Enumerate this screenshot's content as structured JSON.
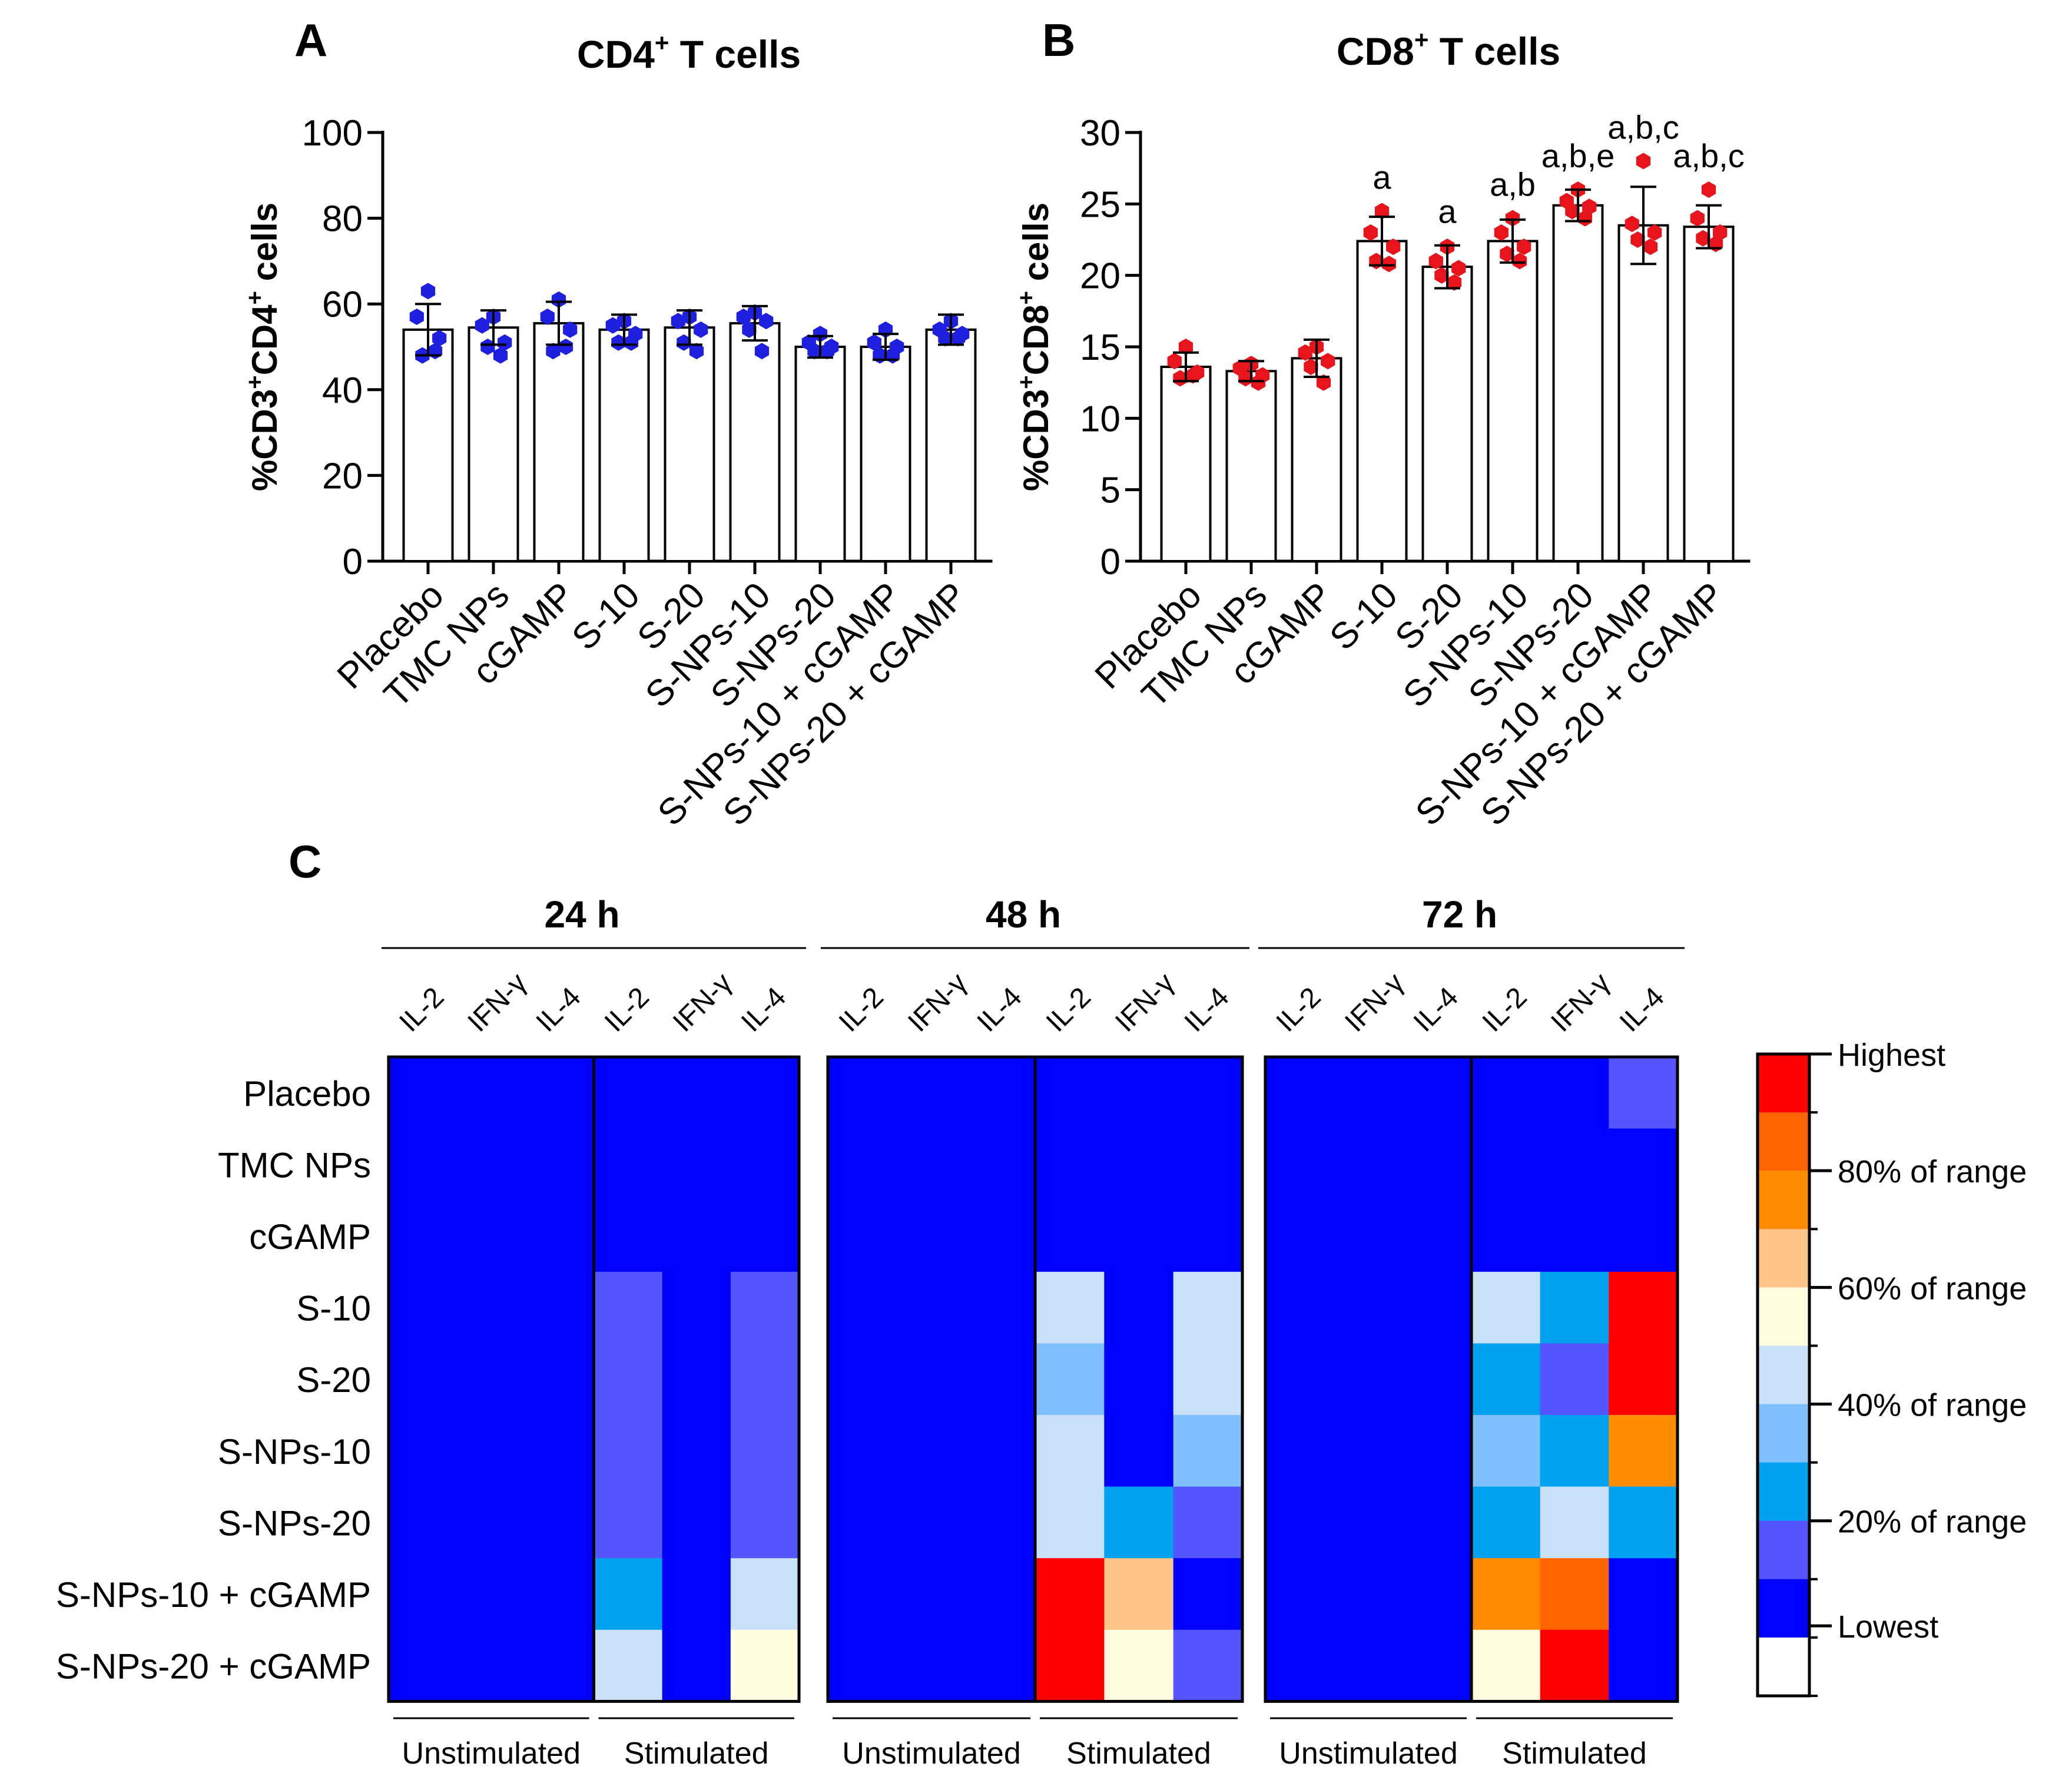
{
  "panel_a": {
    "letter": "A",
    "title_main": "CD4",
    "title_sup": "+",
    "title_rest": " T cells"
  },
  "panel_b": {
    "letter": "B",
    "title_main": "CD8",
    "title_sup": "+",
    "title_rest": " T cells"
  },
  "panel_c": {
    "letter": "C"
  },
  "colors": {
    "blue_point": "#1f1fe0",
    "red_point": "#e8141c",
    "heat_scale": [
      "#ffffff",
      "#0000ff",
      "#5555ff",
      "#00a2f0",
      "#7fbffc",
      "#c8e0f8",
      "#fffde0",
      "#ffc488",
      "#ff8c00",
      "#ff6400",
      "#ff0000"
    ]
  },
  "chart_data": [
    {
      "type": "bar",
      "id": "A",
      "title": "CD4+ T cells",
      "ylabel": "%CD3+CD4+ cells",
      "ylim": [
        0,
        100
      ],
      "yticks": [
        0,
        20,
        40,
        60,
        80,
        100
      ],
      "categories": [
        "Placebo",
        "TMC NPs",
        "cGAMP",
        "S-10",
        "S-20",
        "S-NPs-10",
        "S-NPs-20",
        "S-NPs-10 + cGAMP",
        "S-NPs-20 + cGAMP"
      ],
      "means": [
        54,
        54.5,
        55.5,
        54,
        54.5,
        55.5,
        50,
        50,
        54
      ],
      "sd": [
        6,
        4,
        5,
        3.5,
        4,
        4,
        2.5,
        3,
        3.5
      ],
      "points": [
        [
          63,
          57,
          52,
          48,
          49
        ],
        [
          57,
          55,
          51,
          50,
          48
        ],
        [
          61,
          57,
          54,
          49,
          50
        ],
        [
          56,
          55,
          53,
          51,
          51
        ],
        [
          57,
          56,
          54,
          51,
          49
        ],
        [
          58,
          57,
          56,
          54,
          49
        ],
        [
          53,
          51,
          50,
          49,
          49
        ],
        [
          54,
          51,
          50,
          48,
          48
        ],
        [
          56,
          54,
          53,
          52,
          52
        ]
      ],
      "annotations": [
        "",
        "",
        "",
        "",
        "",
        "",
        "",
        "",
        ""
      ]
    },
    {
      "type": "bar",
      "id": "B",
      "title": "CD8+ T cells",
      "ylabel": "%CD3+CD8+ cells",
      "ylim": [
        0,
        30
      ],
      "yticks": [
        0,
        5,
        10,
        15,
        20,
        25,
        30
      ],
      "categories": [
        "Placebo",
        "TMC NPs",
        "cGAMP",
        "S-10",
        "S-20",
        "S-NPs-10",
        "S-NPs-20",
        "S-NPs-10 + cGAMP",
        "S-NPs-20 + cGAMP"
      ],
      "means": [
        13.6,
        13.3,
        14.2,
        22.4,
        20.6,
        22.4,
        24.9,
        23.5,
        23.4
      ],
      "sd": [
        1.0,
        0.7,
        1.3,
        1.7,
        1.5,
        1.5,
        1.1,
        2.7,
        1.5
      ],
      "points": [
        [
          15.0,
          14.0,
          13.2,
          12.8,
          13.0
        ],
        [
          13.8,
          13.5,
          13.0,
          12.8,
          12.5
        ],
        [
          15.0,
          14.6,
          14.0,
          13.6,
          12.5
        ],
        [
          24.5,
          23.0,
          22.0,
          21.0,
          20.8
        ],
        [
          22.0,
          21.0,
          20.5,
          20.0,
          19.5
        ],
        [
          24.0,
          23.0,
          22.0,
          21.5,
          21.0
        ],
        [
          26.0,
          25.2,
          24.8,
          24.5,
          24.0
        ],
        [
          28.0,
          23.6,
          23.0,
          22.5,
          22.0
        ],
        [
          26.0,
          24.0,
          23.0,
          22.6,
          22.2
        ]
      ],
      "annotations": [
        "",
        "",
        "",
        "a",
        "a",
        "a,b",
        "a,b,e",
        "a,b,c",
        "a,b,c"
      ]
    },
    {
      "type": "heatmap",
      "id": "C",
      "timepoints": [
        "24 h",
        "48 h",
        "72 h"
      ],
      "columns": [
        "IL-2",
        "IFN-γ",
        "IL-4",
        "IL-2",
        "IFN-γ",
        "IL-4"
      ],
      "column_groups": [
        "Unstimulated",
        "Stimulated"
      ],
      "rows": [
        "Placebo",
        "TMC NPs",
        "cGAMP",
        "S-10",
        "S-20",
        "S-NPs-10",
        "S-NPs-20",
        "S-NPs-10 + cGAMP",
        "S-NPs-20 + cGAMP"
      ],
      "scale_levels": "0 = blank/white, 1 = Lowest (deep blue) ... 10 = Highest (red)",
      "values": [
        [
          [
            1,
            1,
            1,
            1,
            1,
            1
          ],
          [
            1,
            1,
            1,
            1,
            1,
            1
          ],
          [
            1,
            1,
            1,
            1,
            1,
            1
          ],
          [
            1,
            1,
            1,
            2,
            1,
            2
          ],
          [
            1,
            1,
            1,
            2,
            1,
            2
          ],
          [
            1,
            1,
            1,
            2,
            1,
            2
          ],
          [
            1,
            1,
            1,
            2,
            1,
            2
          ],
          [
            1,
            1,
            1,
            3,
            1,
            5
          ],
          [
            1,
            1,
            1,
            5,
            1,
            6
          ]
        ],
        [
          [
            1,
            1,
            1,
            1,
            1,
            1
          ],
          [
            1,
            1,
            1,
            1,
            1,
            1
          ],
          [
            1,
            1,
            1,
            1,
            1,
            1
          ],
          [
            1,
            1,
            1,
            5,
            1,
            5
          ],
          [
            1,
            1,
            1,
            4,
            1,
            5
          ],
          [
            1,
            1,
            1,
            5,
            1,
            4
          ],
          [
            1,
            1,
            1,
            5,
            3,
            2
          ],
          [
            1,
            1,
            1,
            10,
            7,
            1
          ],
          [
            1,
            1,
            1,
            10,
            6,
            2
          ]
        ],
        [
          [
            1,
            1,
            1,
            1,
            1,
            2
          ],
          [
            1,
            1,
            1,
            1,
            1,
            1
          ],
          [
            1,
            1,
            1,
            1,
            1,
            1
          ],
          [
            1,
            1,
            1,
            5,
            3,
            10
          ],
          [
            1,
            1,
            1,
            3,
            2,
            10
          ],
          [
            1,
            1,
            1,
            4,
            3,
            8
          ],
          [
            1,
            1,
            1,
            3,
            5,
            3
          ],
          [
            1,
            1,
            1,
            8,
            9,
            1
          ],
          [
            1,
            1,
            1,
            6,
            10,
            1
          ]
        ]
      ],
      "legend_labels": [
        "Highest",
        "80% of range",
        "60% of range",
        "40% of range",
        "20% of range",
        "Lowest"
      ]
    }
  ]
}
